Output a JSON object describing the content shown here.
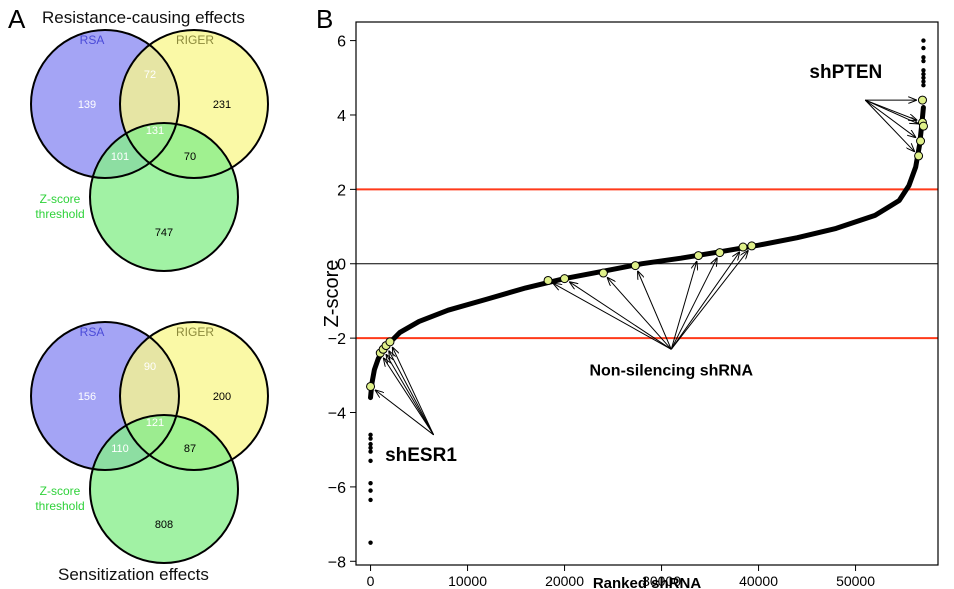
{
  "panel_labels": {
    "a": "A",
    "b": "B"
  },
  "colors": {
    "rsa": "#8b8bf2",
    "riger": "#f8f78d",
    "zscore": "#86ee8a",
    "rsa_label": "#4a4ad8",
    "riger_label": "#8c8a3c",
    "zscore_label": "#2fd23a",
    "threshold_line": "#ff3a1a",
    "highlight_point": "#dff08a"
  },
  "venn_top": {
    "title": "Resistance-causing effects",
    "labels": {
      "rsa": "RSA",
      "riger": "RIGER",
      "zscore_1": "Z-score",
      "zscore_2": "threshold"
    },
    "counts": {
      "rsa_only": "139",
      "riger_only": "231",
      "z_only": "747",
      "rsa_riger": "72",
      "rsa_z": "101",
      "riger_z": "70",
      "all": "131"
    }
  },
  "venn_bottom": {
    "title": "Sensitization effects",
    "labels": {
      "rsa": "RSA",
      "riger": "RIGER",
      "zscore_1": "Z-score",
      "zscore_2": "threshold"
    },
    "counts": {
      "rsa_only": "156",
      "riger_only": "200",
      "z_only": "808",
      "rsa_riger": "90",
      "rsa_z": "110",
      "riger_z": "87",
      "all": "121"
    }
  },
  "chart_data": {
    "type": "scatter",
    "xlabel": "Ranked shRNA",
    "ylabel": "Z-score",
    "xlim": [
      -1500,
      58500
    ],
    "ylim": [
      -8.1,
      6.5
    ],
    "xticks": [
      0,
      10000,
      20000,
      30000,
      40000,
      50000
    ],
    "xtick_labels": [
      "0",
      "10000",
      "20000",
      "30000",
      "40000",
      "50000"
    ],
    "yticks": [
      -8,
      -6,
      -4,
      -2,
      0,
      2,
      4,
      6
    ],
    "ytick_labels": [
      "−8",
      "−6",
      "−4",
      "−2",
      "0",
      "2",
      "4",
      "6"
    ],
    "hlines": [
      {
        "y": 2,
        "color": "#ff3a1a"
      },
      {
        "y": 0,
        "color": "#000000"
      },
      {
        "y": -2,
        "color": "#ff3a1a"
      }
    ],
    "curve": [
      [
        0,
        -3.6
      ],
      [
        150,
        -3.2
      ],
      [
        400,
        -2.85
      ],
      [
        800,
        -2.55
      ],
      [
        1500,
        -2.25
      ],
      [
        3000,
        -1.85
      ],
      [
        5000,
        -1.55
      ],
      [
        8000,
        -1.25
      ],
      [
        12000,
        -0.95
      ],
      [
        16000,
        -0.65
      ],
      [
        20000,
        -0.4
      ],
      [
        24000,
        -0.2
      ],
      [
        28000,
        0.0
      ],
      [
        32000,
        0.15
      ],
      [
        36000,
        0.32
      ],
      [
        40000,
        0.5
      ],
      [
        44000,
        0.7
      ],
      [
        48000,
        0.95
      ],
      [
        52000,
        1.3
      ],
      [
        54500,
        1.7
      ],
      [
        55500,
        2.1
      ],
      [
        56200,
        2.6
      ],
      [
        56600,
        3.2
      ],
      [
        56850,
        3.8
      ],
      [
        57000,
        4.2
      ]
    ],
    "tail_low": [
      [
        0,
        -7.5
      ],
      [
        0,
        -6.35
      ],
      [
        0,
        -6.1
      ],
      [
        0,
        -5.9
      ],
      [
        0,
        -5.3
      ],
      [
        0,
        -5.05
      ],
      [
        0,
        -4.95
      ],
      [
        0,
        -4.85
      ],
      [
        0,
        -4.7
      ],
      [
        0,
        -4.6
      ]
    ],
    "tail_high": [
      [
        57000,
        6.0
      ],
      [
        57000,
        5.8
      ],
      [
        57000,
        5.55
      ],
      [
        57000,
        5.45
      ],
      [
        57000,
        5.2
      ],
      [
        57000,
        5.1
      ],
      [
        57000,
        5.0
      ],
      [
        57000,
        4.9
      ],
      [
        57000,
        4.8
      ]
    ],
    "highlight_groups": [
      {
        "name": "shESR1",
        "points": [
          [
            0,
            -3.3
          ],
          [
            1000,
            -2.4
          ],
          [
            1300,
            -2.3
          ],
          [
            1600,
            -2.2
          ],
          [
            2000,
            -2.1
          ]
        ]
      },
      {
        "name": "Non-silencing shRNA",
        "points": [
          [
            18300,
            -0.45
          ],
          [
            20000,
            -0.4
          ],
          [
            24000,
            -0.25
          ],
          [
            27300,
            -0.05
          ],
          [
            33800,
            0.22
          ],
          [
            36000,
            0.3
          ],
          [
            38400,
            0.45
          ],
          [
            39300,
            0.48
          ]
        ]
      },
      {
        "name": "shPTEN",
        "points": [
          [
            56900,
            4.4
          ],
          [
            56900,
            3.8
          ],
          [
            57000,
            3.7
          ],
          [
            56700,
            3.3
          ],
          [
            56500,
            2.9
          ]
        ]
      }
    ],
    "annotations": [
      {
        "text": "shPTEN",
        "x": 49000,
        "y": 5.0,
        "arrow_from": [
          51000,
          4.4
        ],
        "targets": [
          [
            56900,
            4.4
          ],
          [
            56900,
            3.8
          ],
          [
            57000,
            3.7
          ],
          [
            56700,
            3.3
          ],
          [
            56500,
            2.9
          ]
        ]
      },
      {
        "text": "Non-silencing shRNA",
        "x": 31000,
        "y": -3.0,
        "arrow_from": [
          31000,
          -2.3
        ],
        "targets": [
          [
            18300,
            -0.45
          ],
          [
            20000,
            -0.4
          ],
          [
            24000,
            -0.25
          ],
          [
            27300,
            -0.05
          ],
          [
            33800,
            0.22
          ],
          [
            36000,
            0.3
          ],
          [
            38400,
            0.45
          ],
          [
            39300,
            0.48
          ]
        ]
      },
      {
        "text": "shESR1",
        "x": 5200,
        "y": -5.3,
        "arrow_from": [
          6500,
          -4.6
        ],
        "targets": [
          [
            0,
            -3.3
          ],
          [
            1000,
            -2.4
          ],
          [
            1300,
            -2.3
          ],
          [
            1600,
            -2.2
          ],
          [
            2000,
            -2.1
          ]
        ]
      }
    ]
  }
}
